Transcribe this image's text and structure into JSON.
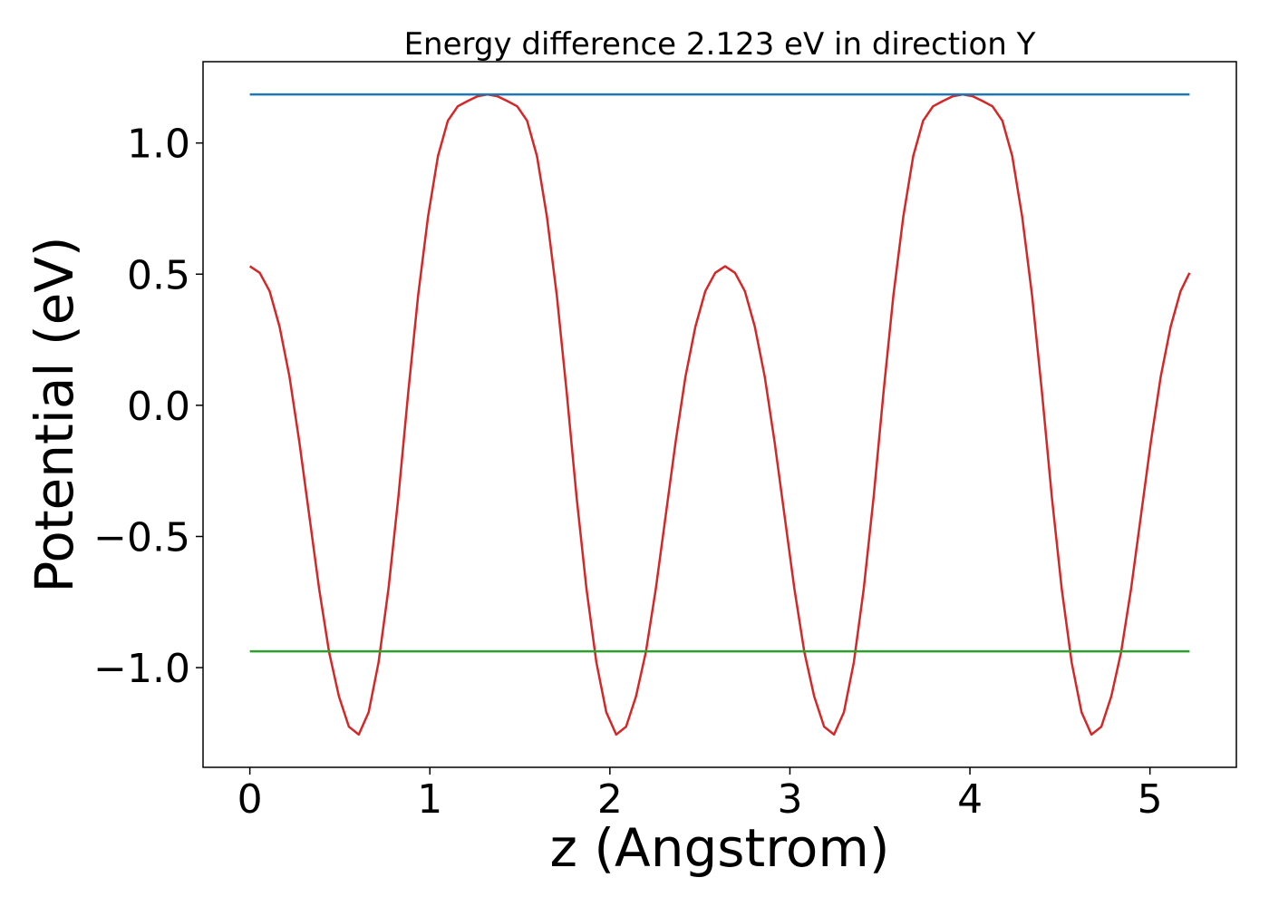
{
  "chart_data": {
    "type": "line",
    "title": "Energy difference 2.123 eV in direction Y",
    "xlabel": "z (Angstrom)",
    "ylabel": "Potential (eV)",
    "xlim": [
      -0.26,
      5.48
    ],
    "ylim": [
      -1.38,
      1.31
    ],
    "xticks": [
      0,
      1,
      2,
      3,
      4,
      5
    ],
    "xtick_labels": [
      "0",
      "1",
      "2",
      "3",
      "4",
      "5"
    ],
    "yticks": [
      1.0,
      0.5,
      0.0,
      -0.5,
      -1.0
    ],
    "ytick_labels": [
      "1.0",
      "0.5",
      "0.0",
      "−0.5",
      "−1.0"
    ],
    "grid": false,
    "series": [
      {
        "color": "#d62728",
        "x": [
          0.0,
          0.055,
          0.11,
          0.165,
          0.22,
          0.275,
          0.33,
          0.385,
          0.44,
          0.495,
          0.55,
          0.605,
          0.66,
          0.715,
          0.77,
          0.825,
          0.88,
          0.935,
          0.99,
          1.045,
          1.1,
          1.155,
          1.21,
          1.265,
          1.32,
          1.375,
          1.43,
          1.485,
          1.54,
          1.595,
          1.65,
          1.705,
          1.76,
          1.815,
          1.87,
          1.925,
          1.98,
          2.035,
          2.09,
          2.145,
          2.2,
          2.255,
          2.31,
          2.365,
          2.42,
          2.475,
          2.53,
          2.585,
          2.64,
          2.695,
          2.75,
          2.805,
          2.86,
          2.915,
          2.97,
          3.025,
          3.08,
          3.135,
          3.19,
          3.245,
          3.3,
          3.355,
          3.41,
          3.465,
          3.52,
          3.575,
          3.63,
          3.685,
          3.74,
          3.795,
          3.85,
          3.905,
          3.96,
          4.015,
          4.07,
          4.125,
          4.18,
          4.235,
          4.29,
          4.345,
          4.4,
          4.455,
          4.51,
          4.565,
          4.62,
          4.675,
          4.73,
          4.785,
          4.84,
          4.895,
          4.95,
          5.005,
          5.06,
          5.115,
          5.17,
          5.22
        ],
        "y": [
          0.53,
          0.505,
          0.435,
          0.3,
          0.11,
          -0.14,
          -0.42,
          -0.7,
          -0.94,
          -1.11,
          -1.225,
          -1.255,
          -1.17,
          -0.98,
          -0.7,
          -0.35,
          0.05,
          0.42,
          0.72,
          0.95,
          1.085,
          1.14,
          1.16,
          1.178,
          1.185,
          1.178,
          1.16,
          1.14,
          1.085,
          0.95,
          0.72,
          0.42,
          0.05,
          -0.35,
          -0.7,
          -0.98,
          -1.17,
          -1.255,
          -1.225,
          -1.11,
          -0.94,
          -0.7,
          -0.42,
          -0.14,
          0.11,
          0.3,
          0.435,
          0.505,
          0.53,
          0.505,
          0.435,
          0.3,
          0.11,
          -0.14,
          -0.42,
          -0.7,
          -0.94,
          -1.11,
          -1.225,
          -1.255,
          -1.17,
          -0.98,
          -0.7,
          -0.35,
          0.05,
          0.42,
          0.72,
          0.95,
          1.085,
          1.14,
          1.16,
          1.178,
          1.185,
          1.178,
          1.16,
          1.14,
          1.085,
          0.95,
          0.72,
          0.42,
          0.05,
          -0.35,
          -0.7,
          -0.98,
          -1.17,
          -1.255,
          -1.225,
          -1.11,
          -0.94,
          -0.7,
          -0.42,
          -0.14,
          0.11,
          0.3,
          0.435,
          0.505
        ]
      },
      {
        "color": "#1f77b4",
        "x": [
          0.0,
          5.22
        ],
        "y": [
          1.185,
          1.185
        ]
      },
      {
        "color": "#2ca02c",
        "x": [
          0.0,
          5.22
        ],
        "y": [
          -0.938,
          -0.938
        ]
      }
    ]
  }
}
